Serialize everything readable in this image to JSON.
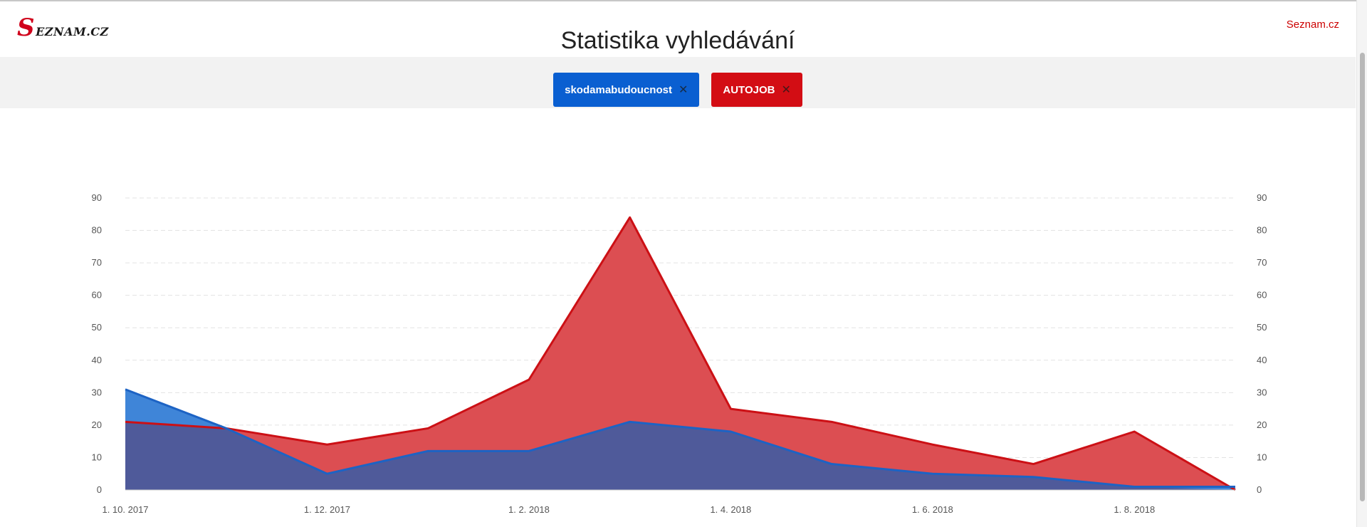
{
  "header": {
    "logo_initial": "S",
    "logo_rest": "EZNAM.CZ",
    "page_title": "Statistika vyhledávání",
    "top_link": "Seznam.cz"
  },
  "query_chips": [
    {
      "label": "skodamabudoucnost",
      "color": "#0a5fd1"
    },
    {
      "label": "AUTOJOB",
      "color": "#d30d14"
    }
  ],
  "close_symbol": "✕",
  "chart_data": {
    "type": "area",
    "x": [
      "2017-10-01",
      "2017-11-01",
      "2017-12-01",
      "2018-01-01",
      "2018-02-01",
      "2018-03-01",
      "2018-04-01",
      "2018-05-01",
      "2018-06-01",
      "2018-07-01",
      "2018-08-01",
      "2018-09-01"
    ],
    "x_tick_labels": [
      {
        "label": "1. 10. 2017",
        "index": 0
      },
      {
        "label": "1. 12. 2017",
        "index": 2
      },
      {
        "label": "1. 2. 2018",
        "index": 4
      },
      {
        "label": "1. 4. 2018",
        "index": 6
      },
      {
        "label": "1. 6. 2018",
        "index": 8
      },
      {
        "label": "1. 8. 2018",
        "index": 10
      }
    ],
    "series": [
      {
        "name": "skodamabudoucnost",
        "color": "#1d63c4",
        "fill": "#3f85d8",
        "values": [
          31,
          19,
          5,
          12,
          12,
          21,
          18,
          8,
          5,
          4,
          1,
          1
        ]
      },
      {
        "name": "AUTOJOB",
        "color": "#cc1015",
        "fill": "#dc4e52",
        "values": [
          21,
          19,
          14,
          19,
          34,
          84,
          25,
          21,
          14,
          8,
          18,
          0
        ]
      }
    ],
    "overlap_color": "#4f5a9a",
    "ylim": [
      0,
      90
    ],
    "y_ticks": [
      0,
      10,
      20,
      30,
      40,
      50,
      60,
      70,
      80,
      90
    ],
    "y_axis_left": true,
    "y_axis_right": true,
    "grid": true,
    "title": "",
    "xlabel": "",
    "ylabel": ""
  }
}
